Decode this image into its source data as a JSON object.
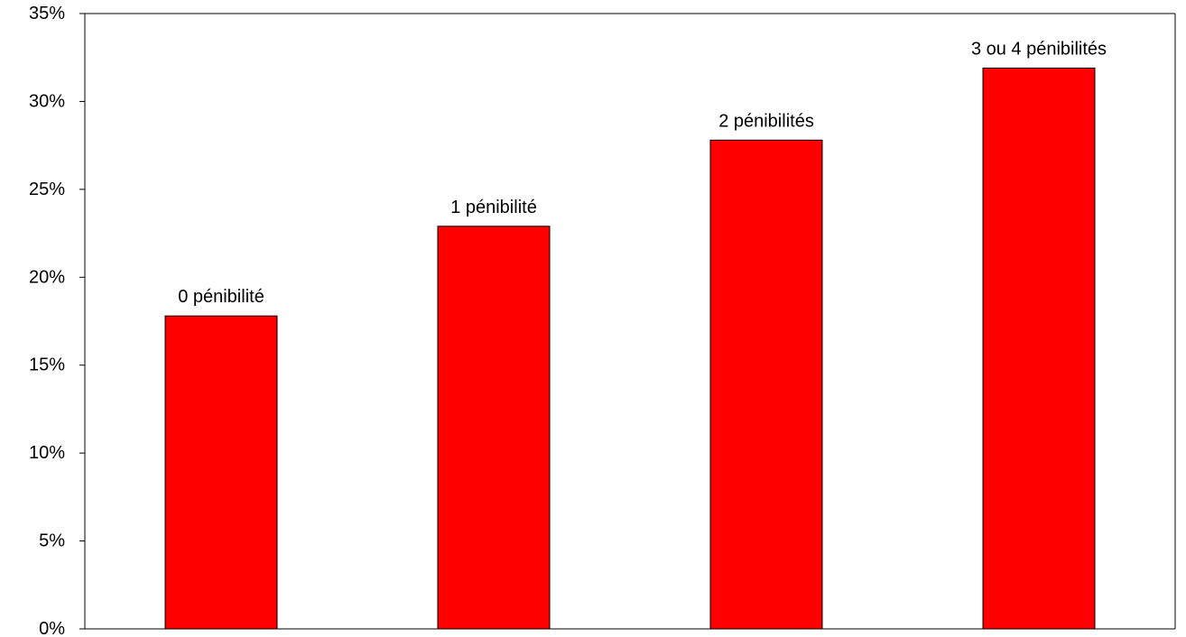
{
  "chart_data": {
    "type": "bar",
    "title": "",
    "xlabel": "",
    "ylabel": "",
    "categories": [
      "0 pénibilité",
      "1 pénibilité",
      "2 pénibilités",
      "3 ou 4 pénibilités"
    ],
    "values": [
      17.8,
      22.9,
      27.8,
      31.9
    ],
    "ylim": [
      0,
      35
    ],
    "yticks": [
      0,
      5,
      10,
      15,
      20,
      25,
      30,
      35
    ],
    "ytick_labels": [
      "0%",
      "5%",
      "10%",
      "15%",
      "20%",
      "25%",
      "30%",
      "35%"
    ],
    "data_labels": [
      "0 pénibilité",
      "1 pénibilité",
      "2 pénibilités",
      "3 ou 4 pénibilités"
    ],
    "grid": false,
    "legend": "none",
    "bar_color": "#ff0000",
    "axis_color": "#000000"
  }
}
